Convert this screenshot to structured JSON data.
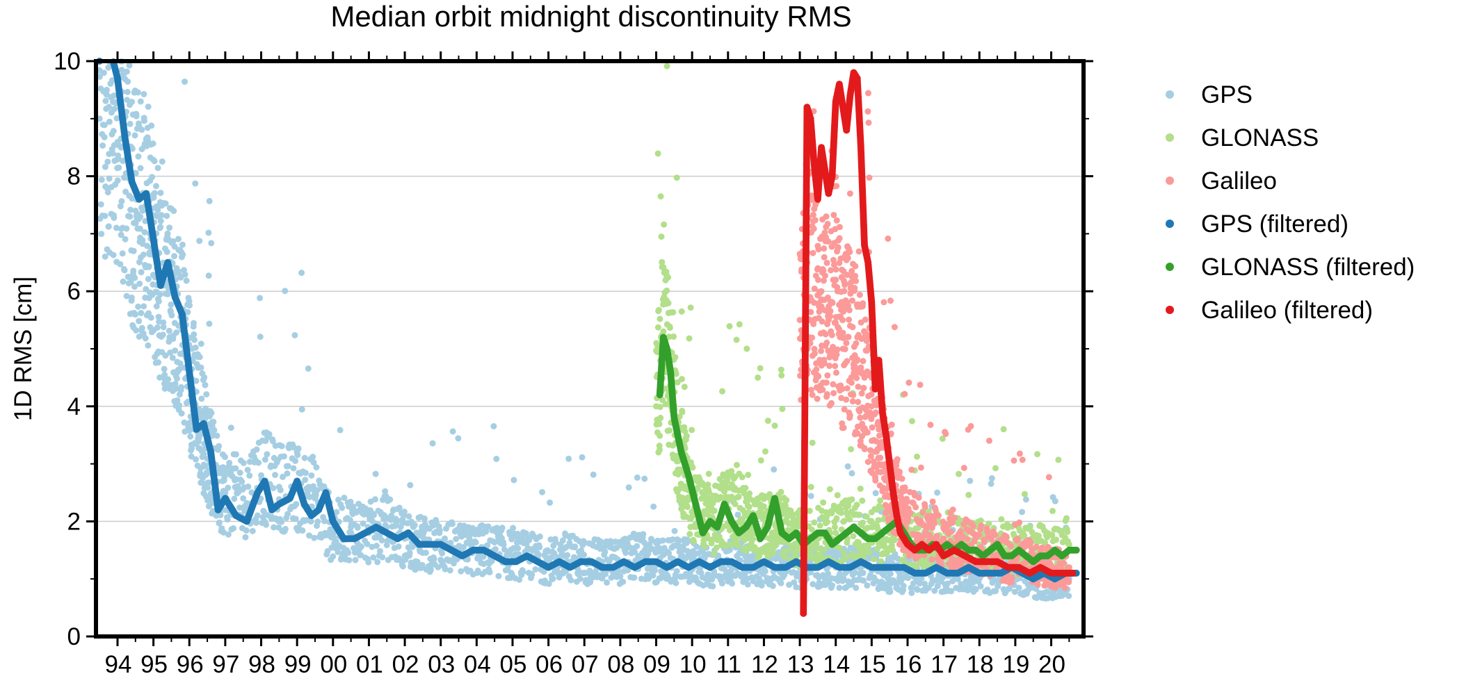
{
  "chart_data": {
    "type": "scatter",
    "title": "Median orbit midnight discontinuity RMS",
    "ylabel": "1D RMS [cm]",
    "xlabel": "",
    "xlim": [
      1993.4,
      2020.9
    ],
    "ylim": [
      0,
      10
    ],
    "yticks": [
      0,
      2,
      4,
      6,
      8,
      10
    ],
    "xtick_labels": [
      {
        "x": 1994,
        "label": "94"
      },
      {
        "x": 1995,
        "label": "95"
      },
      {
        "x": 1996,
        "label": "96"
      },
      {
        "x": 1997,
        "label": "97"
      },
      {
        "x": 1998,
        "label": "98"
      },
      {
        "x": 1999,
        "label": "99"
      },
      {
        "x": 2000,
        "label": "00"
      },
      {
        "x": 2001,
        "label": "01"
      },
      {
        "x": 2002,
        "label": "02"
      },
      {
        "x": 2003,
        "label": "03"
      },
      {
        "x": 2004,
        "label": "04"
      },
      {
        "x": 2005,
        "label": "05"
      },
      {
        "x": 2006,
        "label": "06"
      },
      {
        "x": 2007,
        "label": "07"
      },
      {
        "x": 2008,
        "label": "08"
      },
      {
        "x": 2009,
        "label": "09"
      },
      {
        "x": 2010,
        "label": "10"
      },
      {
        "x": 2011,
        "label": "11"
      },
      {
        "x": 2012,
        "label": "12"
      },
      {
        "x": 2013,
        "label": "13"
      },
      {
        "x": 2014,
        "label": "14"
      },
      {
        "x": 2015,
        "label": "15"
      },
      {
        "x": 2016,
        "label": "16"
      },
      {
        "x": 2017,
        "label": "17"
      },
      {
        "x": 2018,
        "label": "18"
      },
      {
        "x": 2019,
        "label": "19"
      },
      {
        "x": 2020,
        "label": "20"
      }
    ],
    "grid": "horizontal",
    "legend_position": "right",
    "series": [
      {
        "name": "GPS",
        "color": "#a6cee3",
        "kind": "raw",
        "x": [
          1993.5,
          1993.7,
          1993.9,
          1994.1,
          1994.3,
          1994.5,
          1994.7,
          1994.9,
          1995.1,
          1995.3,
          1995.5,
          1995.7,
          1995.9,
          1996.1,
          1996.3,
          1996.5,
          1996.7,
          1997.0,
          1997.5,
          1998.0,
          1998.5,
          1999.0,
          1999.5,
          2000.0,
          2000.5,
          2001.0,
          2001.5,
          2002.0,
          2002.5,
          2003.0,
          2003.5,
          2004.0,
          2004.5,
          2005.0,
          2005.5,
          2006.0,
          2006.5,
          2007.0,
          2007.5,
          2008.0,
          2008.5,
          2009.0,
          2009.5,
          2010.0,
          2010.5,
          2011.0,
          2011.5,
          2012.0,
          2012.5,
          2013.0,
          2013.5,
          2014.0,
          2014.5,
          2015.0,
          2015.5,
          2016.0,
          2016.5,
          2017.0,
          2017.5,
          2018.0,
          2018.5,
          2019.0,
          2019.5,
          2020.0,
          2020.5
        ],
        "y": [
          9.0,
          9.5,
          9.4,
          8.5,
          8.0,
          7.4,
          7.4,
          7.0,
          6.4,
          6.1,
          6.0,
          5.4,
          5.0,
          4.3,
          3.8,
          3.3,
          2.8,
          2.5,
          2.4,
          2.8,
          2.6,
          2.6,
          2.4,
          1.8,
          1.9,
          1.8,
          1.9,
          1.7,
          1.6,
          1.6,
          1.5,
          1.5,
          1.5,
          1.4,
          1.4,
          1.3,
          1.4,
          1.3,
          1.3,
          1.3,
          1.4,
          1.3,
          1.3,
          1.3,
          1.2,
          1.3,
          1.3,
          1.2,
          1.3,
          1.2,
          1.2,
          1.2,
          1.2,
          1.2,
          1.1,
          1.1,
          1.1,
          1.1,
          1.1,
          1.1,
          1.1,
          1.1,
          1.0,
          1.0,
          1.0
        ]
      },
      {
        "name": "GLONASS",
        "color": "#b2df8a",
        "kind": "raw",
        "x": [
          2009.0,
          2009.2,
          2009.4,
          2009.6,
          2009.8,
          2010.0,
          2010.3,
          2010.6,
          2010.9,
          2011.2,
          2011.5,
          2011.8,
          2012.1,
          2012.4,
          2012.7,
          2013.0,
          2013.5,
          2014.0,
          2014.5,
          2015.0,
          2015.5,
          2016.0,
          2016.5,
          2017.0,
          2017.5,
          2018.0,
          2018.5,
          2019.0,
          2019.5,
          2020.0,
          2020.5
        ],
        "y": [
          4.0,
          5.3,
          4.6,
          3.4,
          2.8,
          2.4,
          2.1,
          2.0,
          2.2,
          2.3,
          2.1,
          1.9,
          1.9,
          2.0,
          1.8,
          1.7,
          1.8,
          1.8,
          1.9,
          1.9,
          1.8,
          1.7,
          1.7,
          1.7,
          1.6,
          1.6,
          1.5,
          1.5,
          1.5,
          1.5,
          1.6
        ]
      },
      {
        "name": "Galileo",
        "color": "#fb9a99",
        "kind": "raw",
        "x": [
          2013.0,
          2013.2,
          2013.4,
          2013.6,
          2013.8,
          2014.0,
          2014.2,
          2014.4,
          2014.6,
          2014.8,
          2015.0,
          2015.2,
          2015.4,
          2015.6,
          2015.8,
          2016.0,
          2016.5,
          2017.0,
          2017.5,
          2018.0,
          2018.5,
          2019.0,
          2019.5,
          2020.0,
          2020.5
        ],
        "y": [
          5.5,
          6.5,
          5.8,
          6.0,
          5.5,
          6.2,
          5.0,
          5.4,
          4.8,
          4.5,
          4.0,
          3.6,
          3.0,
          2.6,
          2.2,
          2.0,
          1.8,
          1.7,
          1.6,
          1.5,
          1.4,
          1.3,
          1.3,
          1.2,
          1.2
        ]
      },
      {
        "name": "GPS (filtered)",
        "color": "#1f78b4",
        "kind": "filtered",
        "x": [
          1993.5,
          1993.8,
          1994.0,
          1994.2,
          1994.4,
          1994.6,
          1994.8,
          1995.0,
          1995.2,
          1995.4,
          1995.6,
          1995.8,
          1996.0,
          1996.2,
          1996.4,
          1996.6,
          1996.8,
          1997.0,
          1997.3,
          1997.6,
          1997.9,
          1998.1,
          1998.3,
          1998.5,
          1998.8,
          1999.0,
          1999.2,
          1999.4,
          1999.6,
          1999.8,
          2000.0,
          2000.3,
          2000.6,
          2000.9,
          2001.2,
          2001.5,
          2001.8,
          2002.1,
          2002.4,
          2002.7,
          2003.0,
          2003.3,
          2003.6,
          2003.9,
          2004.2,
          2004.5,
          2004.8,
          2005.1,
          2005.4,
          2005.7,
          2006.0,
          2006.3,
          2006.6,
          2006.9,
          2007.2,
          2007.5,
          2007.8,
          2008.1,
          2008.4,
          2008.7,
          2009.0,
          2009.3,
          2009.6,
          2009.9,
          2010.2,
          2010.5,
          2010.8,
          2011.1,
          2011.4,
          2011.7,
          2012.0,
          2012.3,
          2012.6,
          2012.9,
          2013.2,
          2013.5,
          2013.8,
          2014.1,
          2014.4,
          2014.7,
          2015.0,
          2015.3,
          2015.6,
          2015.9,
          2016.2,
          2016.5,
          2016.8,
          2017.1,
          2017.4,
          2017.7,
          2018.0,
          2018.3,
          2018.6,
          2018.9,
          2019.2,
          2019.5,
          2019.8,
          2020.1,
          2020.4,
          2020.7
        ],
        "y": [
          10.0,
          10.2,
          9.7,
          8.7,
          7.9,
          7.6,
          7.7,
          6.9,
          6.1,
          6.5,
          5.9,
          5.6,
          4.6,
          3.6,
          3.7,
          3.2,
          2.2,
          2.4,
          2.1,
          2.0,
          2.5,
          2.7,
          2.2,
          2.3,
          2.4,
          2.7,
          2.3,
          2.1,
          2.2,
          2.5,
          2.0,
          1.7,
          1.7,
          1.8,
          1.9,
          1.8,
          1.7,
          1.8,
          1.6,
          1.6,
          1.6,
          1.5,
          1.4,
          1.5,
          1.5,
          1.4,
          1.3,
          1.3,
          1.4,
          1.3,
          1.2,
          1.3,
          1.2,
          1.3,
          1.3,
          1.2,
          1.2,
          1.3,
          1.2,
          1.3,
          1.3,
          1.2,
          1.3,
          1.2,
          1.3,
          1.2,
          1.3,
          1.3,
          1.2,
          1.2,
          1.3,
          1.2,
          1.2,
          1.3,
          1.2,
          1.2,
          1.3,
          1.2,
          1.2,
          1.3,
          1.2,
          1.2,
          1.2,
          1.2,
          1.1,
          1.1,
          1.2,
          1.1,
          1.1,
          1.2,
          1.1,
          1.1,
          1.1,
          1.2,
          1.1,
          1.0,
          1.1,
          1.0,
          1.1,
          1.1
        ]
      },
      {
        "name": "GLONASS (filtered)",
        "color": "#33a02c",
        "kind": "filtered",
        "x": [
          2009.1,
          2009.2,
          2009.3,
          2009.4,
          2009.5,
          2009.7,
          2009.9,
          2010.1,
          2010.3,
          2010.5,
          2010.7,
          2010.9,
          2011.1,
          2011.3,
          2011.5,
          2011.7,
          2011.9,
          2012.1,
          2012.3,
          2012.5,
          2012.7,
          2012.9,
          2013.1,
          2013.3,
          2013.5,
          2013.7,
          2013.9,
          2014.1,
          2014.3,
          2014.5,
          2014.7,
          2014.9,
          2015.1,
          2015.3,
          2015.5,
          2015.7,
          2015.9,
          2016.1,
          2016.3,
          2016.5,
          2016.7,
          2016.9,
          2017.1,
          2017.3,
          2017.5,
          2017.7,
          2017.9,
          2018.1,
          2018.3,
          2018.5,
          2018.7,
          2018.9,
          2019.1,
          2019.3,
          2019.5,
          2019.7,
          2019.9,
          2020.1,
          2020.3,
          2020.5,
          2020.7
        ],
        "y": [
          4.2,
          5.2,
          5.0,
          4.6,
          3.8,
          3.2,
          2.8,
          2.3,
          1.8,
          2.0,
          1.9,
          2.3,
          2.0,
          1.8,
          1.9,
          2.1,
          1.7,
          1.9,
          2.4,
          1.8,
          1.7,
          1.8,
          1.6,
          1.7,
          1.8,
          1.8,
          1.6,
          1.7,
          1.8,
          1.9,
          1.8,
          1.7,
          1.7,
          1.8,
          1.9,
          2.0,
          1.8,
          1.6,
          1.5,
          1.5,
          1.6,
          1.5,
          1.6,
          1.5,
          1.6,
          1.5,
          1.5,
          1.4,
          1.5,
          1.6,
          1.4,
          1.4,
          1.5,
          1.4,
          1.3,
          1.4,
          1.4,
          1.5,
          1.4,
          1.5,
          1.5
        ]
      },
      {
        "name": "Galileo (filtered)",
        "color": "#e31a1c",
        "kind": "filtered",
        "x": [
          2013.1,
          2013.2,
          2013.3,
          2013.4,
          2013.5,
          2013.6,
          2013.7,
          2013.8,
          2013.9,
          2014.0,
          2014.1,
          2014.2,
          2014.3,
          2014.4,
          2014.5,
          2014.6,
          2014.7,
          2014.8,
          2014.9,
          2015.0,
          2015.1,
          2015.2,
          2015.3,
          2015.4,
          2015.5,
          2015.6,
          2015.7,
          2015.8,
          2015.9,
          2016.0,
          2016.2,
          2016.4,
          2016.6,
          2016.8,
          2017.0,
          2017.3,
          2017.6,
          2017.9,
          2018.2,
          2018.5,
          2018.8,
          2019.1,
          2019.4,
          2019.7,
          2020.0,
          2020.3,
          2020.6
        ],
        "y": [
          0.4,
          9.2,
          9.0,
          8.2,
          7.6,
          8.5,
          8.1,
          7.7,
          8.0,
          9.3,
          9.6,
          9.2,
          8.8,
          9.4,
          9.8,
          9.7,
          8.5,
          6.8,
          6.5,
          5.8,
          4.3,
          4.8,
          3.9,
          3.5,
          3.0,
          2.5,
          2.1,
          1.8,
          1.7,
          1.6,
          1.5,
          1.6,
          1.5,
          1.6,
          1.4,
          1.5,
          1.4,
          1.3,
          1.3,
          1.3,
          1.2,
          1.2,
          1.1,
          1.2,
          1.1,
          1.1,
          1.1
        ]
      }
    ]
  }
}
